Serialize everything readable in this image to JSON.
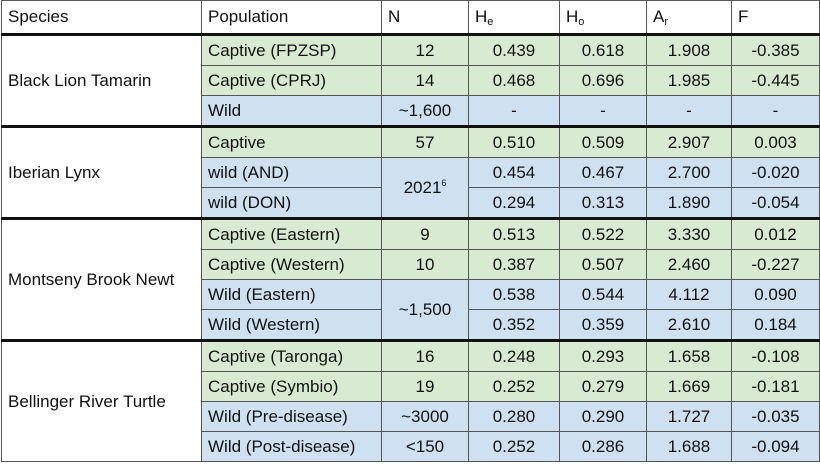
{
  "header": [
    {
      "text": "Species"
    },
    {
      "text": "Population"
    },
    {
      "text": "N"
    },
    {
      "text": "H",
      "sub": "e"
    },
    {
      "text": "H",
      "sub": "o"
    },
    {
      "text": "A",
      "sub": "r"
    },
    {
      "text": "F"
    }
  ],
  "groups": [
    {
      "species": "Black Lion Tamarin",
      "rows": [
        {
          "population": "Captive (FPZSP)",
          "n": {
            "text": "12"
          },
          "he": "0.439",
          "ho": "0.618",
          "ar": "1.908",
          "f": "-0.385"
        },
        {
          "population": "Captive (CPRJ)",
          "n": {
            "text": "14"
          },
          "he": "0.468",
          "ho": "0.696",
          "ar": "1.985",
          "f": "-0.445"
        },
        {
          "population": "Wild",
          "n": {
            "text": "~1,600"
          },
          "he": "-",
          "ho": "-",
          "ar": "-",
          "f": "-"
        }
      ]
    },
    {
      "species": "Iberian Lynx",
      "rows": [
        {
          "population": "Captive",
          "n": {
            "text": "57"
          },
          "he": "0.510",
          "ho": "0.509",
          "ar": "2.907",
          "f": "0.003"
        },
        {
          "population": "wild (AND)",
          "n": {
            "text": "2021",
            "sup": "6"
          },
          "he": "0.454",
          "ho": "0.467",
          "ar": "2.700",
          "f": "-0.020"
        },
        {
          "population": "wild (DON)",
          "he": "0.294",
          "ho": "0.313",
          "ar": "1.890",
          "f": "-0.054"
        }
      ]
    },
    {
      "species": "Montseny Brook Newt",
      "rows": [
        {
          "population": "Captive (Eastern)",
          "n": {
            "text": "9"
          },
          "he": "0.513",
          "ho": "0.522",
          "ar": "3.330",
          "f": "0.012"
        },
        {
          "population": "Captive (Western)",
          "n": {
            "text": "10"
          },
          "he": "0.387",
          "ho": "0.507",
          "ar": "2.460",
          "f": "-0.227"
        },
        {
          "population": "Wild (Eastern)",
          "n": {
            "text": "~1,500"
          },
          "he": "0.538",
          "ho": "0.544",
          "ar": "4.112",
          "f": "0.090"
        },
        {
          "population": "Wild (Western)",
          "he": "0.352",
          "ho": "0.359",
          "ar": "2.610",
          "f": "0.184"
        }
      ]
    },
    {
      "species": "Bellinger River Turtle",
      "rows": [
        {
          "population": "Captive (Taronga)",
          "n": {
            "text": "16"
          },
          "he": "0.248",
          "ho": "0.293",
          "ar": "1.658",
          "f": "-0.108"
        },
        {
          "population": "Captive (Symbio)",
          "n": {
            "text": "19"
          },
          "he": "0.252",
          "ho": "0.279",
          "ar": "1.669",
          "f": "-0.181"
        },
        {
          "population": "Wild (Pre-disease)",
          "n": {
            "text": "~3000"
          },
          "he": "0.280",
          "ho": "0.290",
          "ar": "1.727",
          "f": "-0.035"
        },
        {
          "population": "Wild (Post-disease)",
          "n": {
            "text": "<150"
          },
          "he": "0.252",
          "ho": "0.286",
          "ar": "1.688",
          "f": "-0.094"
        }
      ]
    }
  ]
}
